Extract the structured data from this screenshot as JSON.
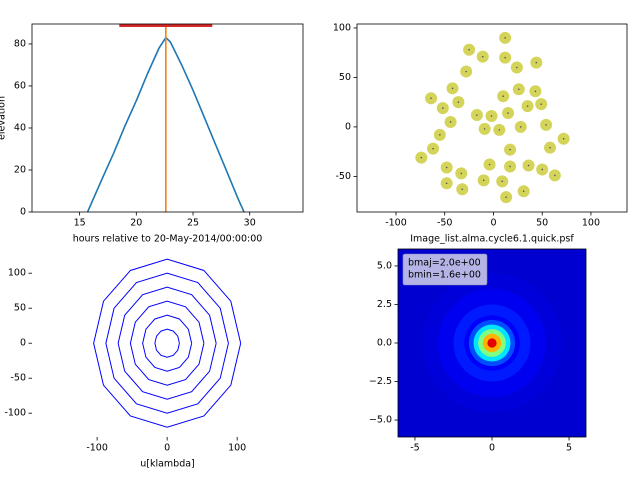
{
  "chart_data": [
    {
      "type": "line",
      "xlabel": "hours relative to 20-May-2014/00:00:00",
      "ylabel": "elevation",
      "xlim": [
        10.8,
        34.7
      ],
      "ylim": [
        0,
        89.5
      ],
      "xticks": [
        15,
        20,
        25,
        30
      ],
      "yticks": [
        0,
        20,
        40,
        60,
        80
      ],
      "series": [
        {
          "color": "#1f77b4",
          "linewidth": 1.6,
          "x": [
            15.7,
            17,
            18,
            19,
            20,
            21,
            22,
            22.6,
            23,
            24,
            25,
            26,
            27,
            28,
            29,
            29.5
          ],
          "values": [
            0,
            16,
            28,
            41,
            53,
            66,
            78,
            83,
            81,
            70,
            58,
            45,
            32,
            19,
            6,
            0
          ]
        },
        {
          "color": "#ff7f0e",
          "linewidth": 1.6,
          "x": [
            22.6,
            22.6
          ],
          "values": [
            0,
            89.5
          ]
        },
        {
          "color": "#d62728",
          "linewidth": 4,
          "x": [
            18.5,
            26.7
          ],
          "values": [
            89,
            89
          ]
        }
      ]
    },
    {
      "type": "scatter",
      "xlabel": "Image_list.alma.cycle6.1.quick.psf",
      "color": "#d4d45a",
      "xlim": [
        -140,
        137
      ],
      "ylim": [
        -86,
        104
      ],
      "xticks": [
        -100,
        -50,
        0,
        50,
        100
      ],
      "yticks": [
        -50,
        0,
        50,
        100
      ],
      "x": [
        12,
        -25,
        -11,
        12,
        44,
        24,
        -28,
        -42,
        26,
        43,
        -64,
        10,
        -36,
        -52,
        35,
        49,
        -17,
        -2,
        15,
        -44,
        54,
        -9,
        6,
        28,
        -55,
        72,
        -62,
        58,
        17,
        -74,
        -4,
        -48,
        17,
        36,
        50,
        -33,
        63,
        -10,
        9,
        -48,
        -32,
        31,
        13
      ],
      "values": [
        90,
        78,
        71,
        70,
        65,
        60,
        56,
        39,
        38,
        36,
        29,
        31,
        25,
        19,
        21,
        23,
        12,
        11,
        14,
        5,
        2,
        -2,
        -3,
        0,
        -8,
        -12,
        -22,
        -21,
        -23,
        -31,
        -38,
        -41,
        -40,
        -39,
        -43,
        -47,
        -49,
        -54,
        -55,
        -57,
        -63,
        -65,
        -71
      ]
    },
    {
      "type": "line",
      "xlabel": "u[klambda]",
      "frame": false,
      "xlim": [
        -193,
        194
      ],
      "ylim": [
        -134,
        136
      ],
      "xticks": [
        -100,
        0,
        100
      ],
      "yticks": [
        -100,
        -50,
        0,
        50,
        100
      ],
      "series": [
        {
          "color": "#0000ff",
          "linewidth": 1,
          "x": [
            17.5,
            15.2,
            8.8,
            0,
            -8.8,
            -15.2,
            -17.5,
            -15.2,
            -8.8,
            0,
            8.8,
            15.2,
            17.5
          ],
          "values": [
            0,
            10,
            17.3,
            20,
            17.3,
            10,
            0,
            -10,
            -17.3,
            -20,
            -17.3,
            -10,
            0
          ]
        },
        {
          "color": "#0000ff",
          "linewidth": 1,
          "x": [
            35,
            30.3,
            17.5,
            0,
            -17.5,
            -30.3,
            -35,
            -30.3,
            -17.5,
            0,
            17.5,
            30.3,
            35
          ],
          "values": [
            0,
            20,
            34.6,
            40,
            34.6,
            20,
            0,
            -20,
            -34.6,
            -40,
            -34.6,
            -20,
            0
          ]
        },
        {
          "color": "#0000ff",
          "linewidth": 1,
          "x": [
            52.5,
            45.5,
            26.3,
            0,
            -26.3,
            -45.5,
            -52.5,
            -45.5,
            -26.3,
            0,
            26.3,
            45.5,
            52.5
          ],
          "values": [
            0,
            30,
            52,
            60,
            52,
            30,
            0,
            -30,
            -52,
            -60,
            -52,
            -30,
            0
          ]
        },
        {
          "color": "#0000ff",
          "linewidth": 1,
          "x": [
            70,
            60.6,
            35,
            0,
            -35,
            -60.6,
            -70,
            -60.6,
            -35,
            0,
            35,
            60.6,
            70
          ],
          "values": [
            0,
            40,
            69.3,
            80,
            69.3,
            40,
            0,
            -40,
            -69.3,
            -80,
            -69.3,
            -40,
            0
          ]
        },
        {
          "color": "#0000ff",
          "linewidth": 1,
          "x": [
            87.5,
            75.8,
            43.8,
            0,
            -43.8,
            -75.8,
            -87.5,
            -75.8,
            -43.8,
            0,
            43.8,
            75.8,
            87.5
          ],
          "values": [
            0,
            50,
            86.6,
            100,
            86.6,
            50,
            0,
            -50,
            -86.6,
            -100,
            -86.6,
            -50,
            0
          ]
        },
        {
          "color": "#0000ff",
          "linewidth": 1,
          "x": [
            105,
            90.9,
            52.5,
            0,
            -52.5,
            -90.9,
            -105,
            -90.9,
            -52.5,
            0,
            52.5,
            90.9,
            105
          ],
          "values": [
            0,
            60,
            103.9,
            120,
            103.9,
            60,
            0,
            -60,
            -103.9,
            -120,
            -103.9,
            -60,
            0
          ]
        }
      ]
    },
    {
      "type": "image",
      "colormap": "jet",
      "xlim": [
        -6.1,
        6.1
      ],
      "ylim": [
        -6.1,
        6.1
      ],
      "xticks": [
        -5,
        0,
        5
      ],
      "yticks": [
        {
          "value": -5,
          "label": "−5.0"
        },
        {
          "value": -2.5,
          "label": "−2.5"
        },
        {
          "value": 0,
          "label": "0.0"
        },
        {
          "value": 2.5,
          "label": "2.5"
        },
        {
          "value": 5,
          "label": "5.0"
        }
      ],
      "annotation": [
        "bmaj=2.0e+00",
        "bmin=1.6e+00"
      ],
      "radius": [
        9,
        4.5,
        3.5,
        2.5,
        1.8,
        1.5,
        1.2,
        0.9,
        0.6,
        0.3
      ],
      "values": [
        0.08,
        0.09,
        0.11,
        0.15,
        0.12,
        0.2,
        0.35,
        0.5,
        0.7,
        0.9
      ]
    }
  ]
}
